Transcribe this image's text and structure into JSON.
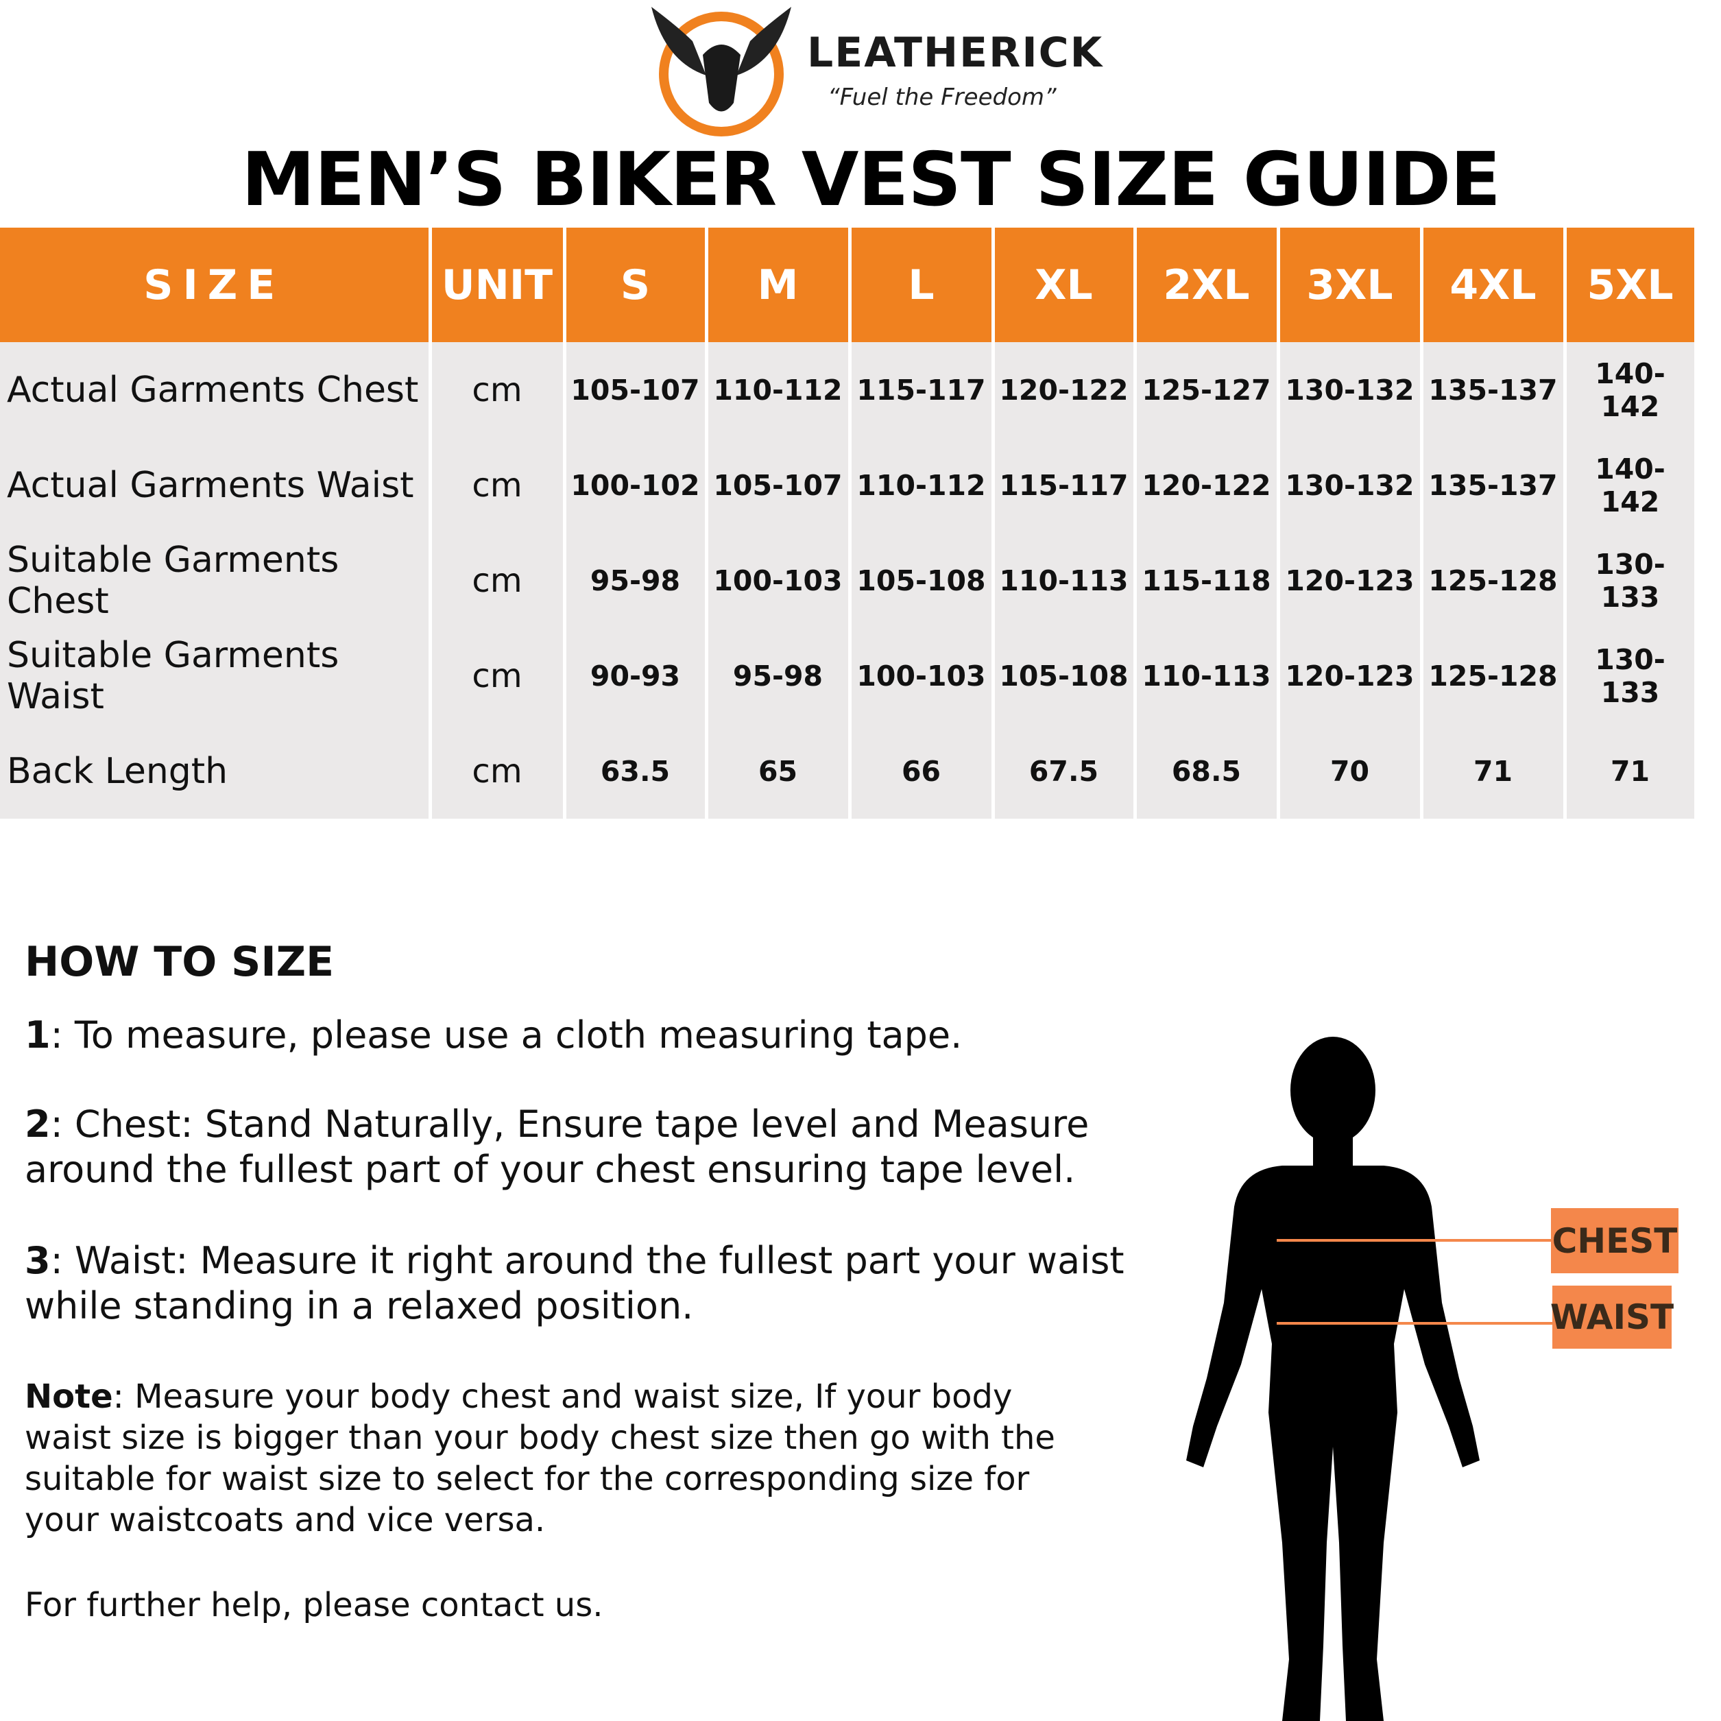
{
  "header": {
    "brand": "LEATHERICK",
    "tagline": "“Fuel the Freedom”",
    "title": "MEN’S BIKER VEST SIZE GUIDE"
  },
  "table": {
    "columns": [
      "SIZE",
      "UNIT",
      "S",
      "M",
      "L",
      "XL",
      "2XL",
      "3XL",
      "4XL",
      "5XL"
    ],
    "rows": [
      [
        "Actual Garments Chest",
        "cm",
        "105-107",
        "110-112",
        "115-117",
        "120-122",
        "125-127",
        "130-132",
        "135-137",
        "140-142"
      ],
      [
        "Actual Garments Waist",
        "cm",
        "100-102",
        "105-107",
        "110-112",
        "115-117",
        "120-122",
        "130-132",
        "135-137",
        "140-142"
      ],
      [
        "Suitable Garments Chest",
        "cm",
        "95-98",
        "100-103",
        "105-108",
        "110-113",
        "115-118",
        "120-123",
        "125-128",
        "130-133"
      ],
      [
        "Suitable Garments Waist",
        "cm",
        "90-93",
        "95-98",
        "100-103",
        "105-108",
        "110-113",
        "120-123",
        "125-128",
        "130-133"
      ],
      [
        "Back Length",
        "cm",
        "63.5",
        "65",
        "66",
        "67.5",
        "68.5",
        "70",
        "71",
        "71"
      ]
    ]
  },
  "how_to": {
    "heading": "HOW TO SIZE",
    "steps": [
      {
        "label": "1",
        "text": ": To measure, please use a cloth measuring tape."
      },
      {
        "label": "2",
        "text": ": Chest: Stand Naturally, Ensure tape level and Measure around the fullest part of your chest ensuring tape level."
      },
      {
        "label": "3",
        "text": ": Waist: Measure it right around the fullest part your waist while standing in a relaxed position."
      }
    ],
    "note": {
      "label": "Note",
      "text": ": Measure your body chest and waist size, If your body waist size is bigger than your body chest size then go with the suitable for waist size to select for the corresponding size for your waistcoats and vice versa."
    },
    "footer": "For further help, please contact us."
  },
  "figure": {
    "chest": "CHEST",
    "waist": "WAIST"
  }
}
